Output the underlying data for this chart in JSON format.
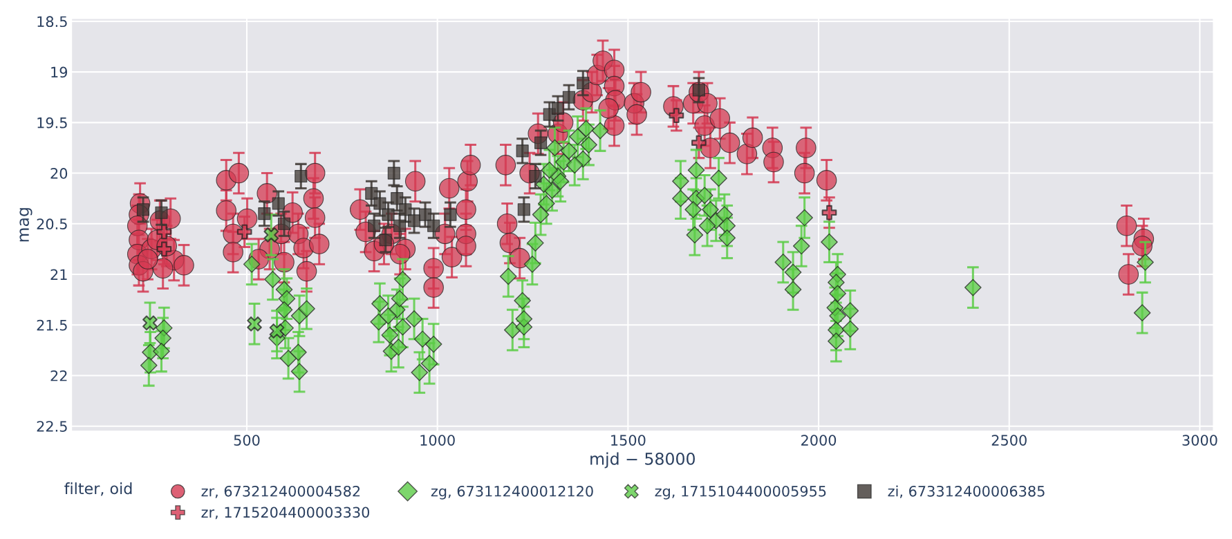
{
  "chart_data": {
    "type": "scatter",
    "xlabel": "mjd − 58000",
    "ylabel": "mag",
    "legend_title": "filter, oid",
    "xlim": [
      40,
      3036
    ],
    "ylim": [
      22.55,
      18.47
    ],
    "xticks": [
      500,
      1000,
      1500,
      2000,
      2500,
      3000
    ],
    "yticks": [
      18.5,
      19,
      19.5,
      20,
      20.5,
      21,
      21.5,
      22,
      22.5
    ],
    "grid": true,
    "legend": "bottom",
    "series": [
      {
        "name": "zr, 673212400004582",
        "color": "#d43a52",
        "marker": "circle",
        "x": [
          220,
          217,
          213,
          217,
          213,
          217,
          228,
          250,
          265,
          272,
          300,
          309,
          280,
          335,
          240,
          290,
          446,
          464,
          501,
          464,
          553,
          560,
          590,
          620,
          635,
          649,
          657,
          679,
          675,
          679,
          690,
          531,
          598,
          446,
          479,
          797,
          812,
          834,
          942,
          916,
          990,
          990,
          1031,
          1020,
          1038,
          1079,
          1087,
          1075,
          1075,
          1075,
          902,
          880,
          860,
          1179,
          1183,
          1190,
          1216,
          1242,
          1264,
          1316,
          1330,
          1382,
          1405,
          1419,
          1434,
          1464,
          1464,
          1467,
          1464,
          1516,
          1523,
          1534,
          1449,
          1619,
          1671,
          1686,
          1708,
          1701,
          1741,
          1716,
          1767,
          1812,
          1827,
          1879,
          1882,
          1967,
          1963,
          2021,
          2808,
          2813,
          2853,
          2849
        ],
        "values": [
          20.3,
          20.41,
          20.52,
          20.66,
          20.8,
          20.91,
          20.97,
          20.75,
          20.66,
          20.47,
          20.45,
          20.86,
          20.94,
          20.91,
          20.85,
          20.72,
          20.37,
          20.6,
          20.45,
          20.78,
          20.2,
          20.75,
          20.6,
          20.39,
          20.6,
          20.74,
          20.97,
          20.0,
          20.25,
          20.44,
          20.7,
          20.85,
          20.88,
          20.07,
          20.0,
          20.36,
          20.58,
          20.77,
          20.08,
          20.75,
          20.94,
          21.13,
          20.15,
          20.6,
          20.83,
          20.08,
          19.92,
          20.36,
          20.6,
          20.72,
          20.8,
          20.6,
          20.7,
          19.92,
          20.5,
          20.69,
          20.84,
          20.0,
          19.61,
          19.61,
          19.5,
          19.28,
          19.2,
          19.03,
          18.89,
          18.98,
          19.14,
          19.28,
          19.53,
          19.31,
          19.42,
          19.2,
          19.36,
          19.34,
          19.31,
          19.2,
          19.31,
          19.53,
          19.46,
          19.75,
          19.7,
          19.81,
          19.65,
          19.75,
          19.89,
          19.75,
          20.0,
          20.07,
          20.52,
          21.0,
          20.65,
          20.72
        ],
        "errors": [
          0.2,
          0.2,
          0.2,
          0.2,
          0.2,
          0.2,
          0.2,
          0.2,
          0.2,
          0.2,
          0.2,
          0.2,
          0.2,
          0.2,
          0.2,
          0.2,
          0.2,
          0.2,
          0.2,
          0.2,
          0.2,
          0.2,
          0.2,
          0.2,
          0.2,
          0.2,
          0.2,
          0.2,
          0.2,
          0.2,
          0.2,
          0.2,
          0.2,
          0.2,
          0.2,
          0.2,
          0.2,
          0.2,
          0.2,
          0.2,
          0.2,
          0.2,
          0.2,
          0.2,
          0.2,
          0.2,
          0.2,
          0.2,
          0.2,
          0.2,
          0.2,
          0.2,
          0.2,
          0.2,
          0.2,
          0.2,
          0.2,
          0.2,
          0.2,
          0.2,
          0.2,
          0.2,
          0.2,
          0.2,
          0.2,
          0.2,
          0.2,
          0.2,
          0.2,
          0.2,
          0.2,
          0.2,
          0.2,
          0.2,
          0.2,
          0.2,
          0.2,
          0.2,
          0.2,
          0.2,
          0.2,
          0.2,
          0.2,
          0.2,
          0.2,
          0.2,
          0.2,
          0.2,
          0.2,
          0.2,
          0.2,
          0.2
        ]
      },
      {
        "name": "zr, 1715204400003330",
        "color": "#d43a52",
        "marker": "cross",
        "x": [
          283,
          283,
          494,
          1627,
          1686,
          2028
        ],
        "values": [
          20.58,
          20.75,
          20.58,
          19.43,
          19.7,
          20.39
        ],
        "errors": [
          0.15,
          0.15,
          0.15,
          0.15,
          0.15,
          0.15
        ]
      },
      {
        "name": "zg, 673112400012120",
        "color": "#5ccc47",
        "marker": "diamond",
        "x": [
          247,
          243,
          283,
          280,
          276,
          513,
          568,
          598,
          605,
          598,
          601,
          579,
          609,
          638,
          657,
          635,
          638,
          849,
          846,
          875,
          879,
          894,
          901,
          909,
          909,
          898,
          871,
          939,
          961,
          953,
          979,
          990,
          1186,
          1197,
          1223,
          1227,
          1227,
          1249,
          1257,
          1271,
          1286,
          1301,
          1316,
          1331,
          1345,
          1368,
          1390,
          1397,
          1427,
          1382,
          1360,
          1308,
          1294,
          1279,
          1323,
          1638,
          1638,
          1679,
          1679,
          1671,
          1675,
          1701,
          1716,
          1738,
          1731,
          1753,
          1760,
          1760,
          1708,
          1907,
          1933,
          1933,
          1955,
          1963,
          2028,
          2050,
          2046,
          2050,
          2043,
          2050,
          2046,
          2046,
          2083,
          2083,
          2405,
          2857,
          2849
        ],
        "values": [
          21.77,
          21.9,
          21.53,
          21.63,
          21.76,
          20.9,
          21.05,
          21.15,
          21.24,
          21.35,
          21.53,
          21.63,
          21.83,
          21.41,
          21.34,
          21.77,
          21.96,
          21.29,
          21.47,
          21.6,
          21.76,
          21.35,
          21.24,
          21.05,
          21.52,
          21.72,
          21.41,
          21.44,
          21.64,
          21.97,
          21.88,
          21.69,
          21.02,
          21.55,
          21.26,
          21.52,
          21.44,
          20.9,
          20.69,
          20.41,
          20.3,
          20.17,
          20.03,
          19.89,
          19.78,
          19.64,
          19.56,
          19.72,
          19.58,
          19.86,
          19.92,
          19.75,
          19.97,
          20.11,
          20.08,
          20.08,
          20.25,
          19.97,
          20.25,
          20.36,
          20.61,
          20.22,
          20.36,
          20.05,
          20.47,
          20.41,
          20.52,
          20.64,
          20.52,
          20.88,
          20.98,
          21.15,
          20.72,
          20.44,
          20.68,
          21.0,
          21.08,
          21.19,
          21.33,
          21.41,
          21.55,
          21.66,
          21.36,
          21.54,
          21.13,
          20.88,
          21.38
        ],
        "errors": [
          0.2,
          0.2,
          0.2,
          0.2,
          0.2,
          0.2,
          0.2,
          0.2,
          0.2,
          0.2,
          0.2,
          0.2,
          0.2,
          0.2,
          0.2,
          0.2,
          0.2,
          0.2,
          0.2,
          0.2,
          0.2,
          0.2,
          0.2,
          0.2,
          0.2,
          0.2,
          0.2,
          0.2,
          0.2,
          0.2,
          0.2,
          0.2,
          0.2,
          0.2,
          0.2,
          0.2,
          0.2,
          0.2,
          0.2,
          0.2,
          0.2,
          0.2,
          0.2,
          0.2,
          0.2,
          0.2,
          0.2,
          0.2,
          0.2,
          0.2,
          0.2,
          0.2,
          0.2,
          0.2,
          0.2,
          0.2,
          0.2,
          0.2,
          0.2,
          0.2,
          0.2,
          0.2,
          0.2,
          0.2,
          0.2,
          0.2,
          0.2,
          0.2,
          0.2,
          0.2,
          0.2,
          0.2,
          0.2,
          0.2,
          0.2,
          0.2,
          0.2,
          0.2,
          0.2,
          0.2,
          0.2,
          0.2,
          0.2,
          0.2,
          0.2,
          0.2,
          0.2
        ]
      },
      {
        "name": "zg, 1715104400005955",
        "color": "#5ccc47",
        "marker": "x",
        "x": [
          246,
          520,
          564,
          579
        ],
        "values": [
          21.48,
          21.49,
          20.61,
          21.56
        ],
        "errors": [
          0.2,
          0.2,
          0.2,
          0.2
        ]
      },
      {
        "name": "zi, 673312400006385",
        "color": "#3d3733",
        "marker": "square",
        "x": [
          228,
          276,
          546,
          583,
          598,
          642,
          827,
          849,
          871,
          886,
          894,
          901,
          916,
          834,
          864,
          939,
          968,
          1034,
          990,
          1223,
          1227,
          1257,
          1271,
          1294,
          1316,
          1345,
          1382,
          1686
        ],
        "values": [
          20.36,
          20.39,
          20.4,
          20.3,
          20.5,
          20.03,
          20.2,
          20.3,
          20.41,
          20.0,
          20.25,
          20.52,
          20.36,
          20.52,
          20.66,
          20.47,
          20.41,
          20.41,
          20.52,
          19.78,
          20.36,
          20.03,
          19.7,
          19.42,
          19.36,
          19.25,
          19.11,
          19.18
        ],
        "errors": [
          0.12,
          0.12,
          0.12,
          0.12,
          0.12,
          0.12,
          0.12,
          0.12,
          0.12,
          0.12,
          0.12,
          0.12,
          0.12,
          0.12,
          0.12,
          0.12,
          0.12,
          0.12,
          0.12,
          0.12,
          0.12,
          0.12,
          0.12,
          0.12,
          0.12,
          0.12,
          0.12,
          0.12
        ]
      }
    ]
  }
}
